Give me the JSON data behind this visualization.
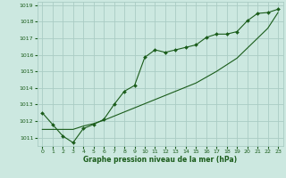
{
  "title": "Graphe pression niveau de la mer (hPa)",
  "bg_color": "#cce8e0",
  "grid_color": "#aaccC4",
  "line_color": "#1a5c1a",
  "marker_color": "#1a5c1a",
  "xlim": [
    -0.5,
    23.5
  ],
  "ylim": [
    1010.5,
    1019.2
  ],
  "xticks": [
    0,
    1,
    2,
    3,
    4,
    5,
    6,
    7,
    8,
    9,
    10,
    11,
    12,
    13,
    14,
    15,
    16,
    17,
    18,
    19,
    20,
    21,
    22,
    23
  ],
  "yticks": [
    1011,
    1012,
    1013,
    1014,
    1015,
    1016,
    1017,
    1018,
    1019
  ],
  "series1_x": [
    0,
    1,
    2,
    3,
    4,
    5,
    6,
    7,
    8,
    9,
    10,
    11,
    12,
    13,
    14,
    15,
    16,
    17,
    18,
    19,
    20,
    21,
    22,
    23
  ],
  "series1_y": [
    1012.5,
    1011.8,
    1011.1,
    1010.7,
    1011.55,
    1011.8,
    1012.1,
    1013.0,
    1013.8,
    1014.15,
    1015.85,
    1016.3,
    1016.15,
    1016.3,
    1016.45,
    1016.6,
    1017.05,
    1017.25,
    1017.25,
    1017.4,
    1018.05,
    1018.5,
    1018.55,
    1018.75
  ],
  "series2_x": [
    0,
    1,
    2,
    3,
    4,
    5,
    6,
    7,
    8,
    9,
    10,
    11,
    12,
    13,
    14,
    15,
    16,
    17,
    18,
    19,
    20,
    21,
    22,
    23
  ],
  "series2_y": [
    1011.5,
    1011.5,
    1011.5,
    1011.5,
    1011.7,
    1011.85,
    1012.05,
    1012.3,
    1012.55,
    1012.8,
    1013.05,
    1013.3,
    1013.55,
    1013.8,
    1014.05,
    1014.3,
    1014.65,
    1015.0,
    1015.4,
    1015.8,
    1016.4,
    1017.0,
    1017.6,
    1018.55
  ]
}
